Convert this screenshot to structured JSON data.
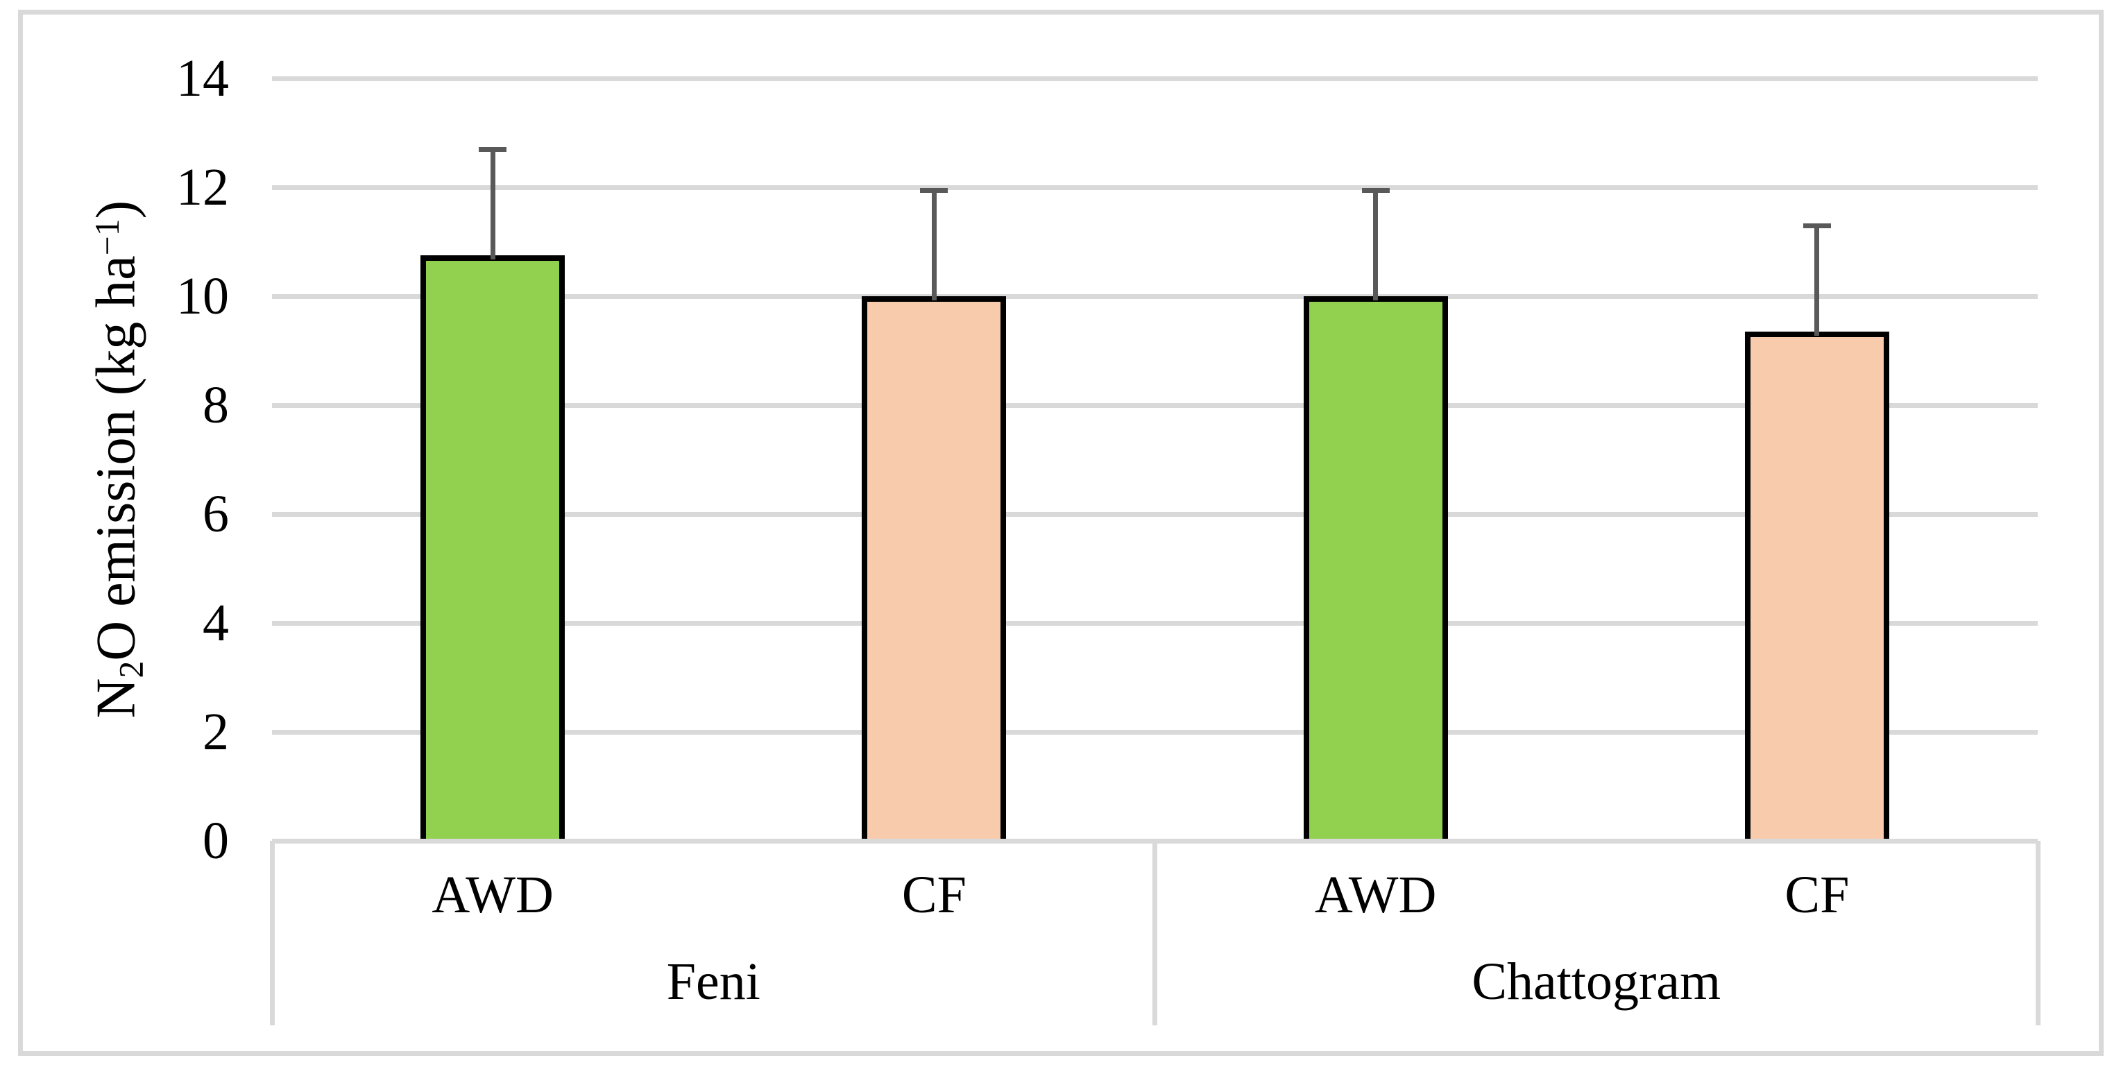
{
  "figure": {
    "background": "#FFFFFF",
    "border_color": "#D9D9D9"
  },
  "chart_data": {
    "type": "bar",
    "title": "",
    "xlabel": "",
    "ylabel": "N₂O emission (kg ha⁻¹)",
    "ylabel_parts": [
      {
        "text": "N",
        "style": "normal"
      },
      {
        "text": "2",
        "style": "sub"
      },
      {
        "text": "O emission (kg ha",
        "style": "normal"
      },
      {
        "text": "−1",
        "style": "sup"
      },
      {
        "text": ")",
        "style": "normal"
      }
    ],
    "ylim": [
      0,
      14
    ],
    "ytick_step": 2,
    "yticks": [
      0,
      2,
      4,
      6,
      8,
      10,
      12,
      14
    ],
    "grid": "horizontal-gridlines-on",
    "legend": "none",
    "categories": [
      "Feni",
      "Chattogram"
    ],
    "series": [
      {
        "name": "AWD",
        "color": "#92D050",
        "values": [
          10.75,
          10.0
        ],
        "error_bar_tops": [
          12.7,
          11.95
        ]
      },
      {
        "name": "CF",
        "color": "#F8CBAD",
        "values": [
          10.0,
          9.35
        ],
        "error_bar_tops": [
          11.95,
          11.3
        ]
      }
    ],
    "bar_labels_row": [
      "AWD",
      "CF",
      "AWD",
      "CF"
    ],
    "error_bars": {
      "direction": "plus-only",
      "cap": true
    },
    "colors": {
      "gridline": "#D9D9D9",
      "axis_line": "#D9D9D9",
      "category_divider": "#D9D9D9",
      "bar_outline": "#000000",
      "error_bar": "#595959",
      "text": "#000000"
    }
  }
}
